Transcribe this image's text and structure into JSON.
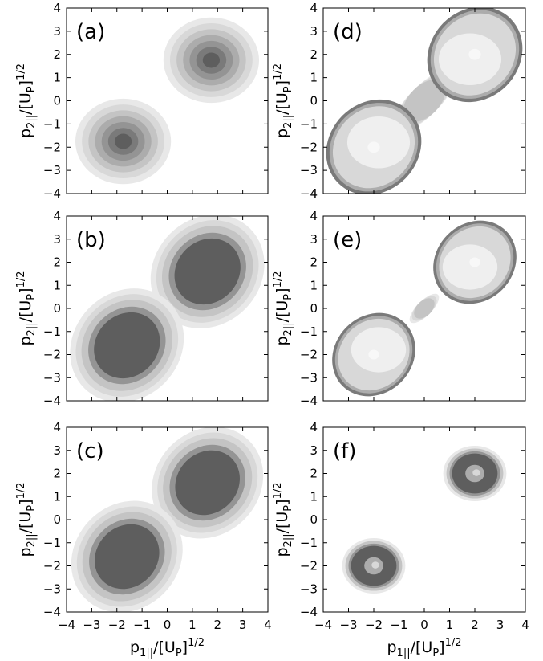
{
  "chart_data": [
    {
      "type": "heatmap",
      "panel_label": "(a)",
      "ylabel_main": "p",
      "ylabel_sub": "2||",
      "ylabel_tail": "/[U",
      "ylabel_tail_sub": "P",
      "ylabel_end": "]",
      "ylabel_sup": "1/2",
      "xlim": [
        -4,
        4
      ],
      "ylim": [
        -4,
        4
      ],
      "x_ticks": [
        "-4",
        "-3",
        "-2",
        "-1",
        "0",
        "1",
        "2",
        "3",
        "4"
      ],
      "y_ticks": [
        "4",
        "3",
        "2",
        "1",
        "0",
        "-1",
        "-2",
        "-3",
        "-4"
      ],
      "style": "peak",
      "lobes": [
        {
          "cx": 1.75,
          "cy": 1.75,
          "radius": 1.9
        },
        {
          "cx": -1.75,
          "cy": -1.75,
          "radius": 1.9
        }
      ],
      "bridge": 0
    },
    {
      "type": "heatmap",
      "panel_label": "(b)",
      "ylabel_main": "p",
      "ylabel_sub": "2||",
      "ylabel_tail": "/[U",
      "ylabel_tail_sub": "P",
      "ylabel_end": "]",
      "ylabel_sup": "1/2",
      "xlim": [
        -4,
        4
      ],
      "ylim": [
        -4,
        4
      ],
      "x_ticks": [
        "-4",
        "-3",
        "-2",
        "-1",
        "0",
        "1",
        "2",
        "3",
        "4"
      ],
      "y_ticks": [
        "4",
        "3",
        "2",
        "1",
        "0",
        "-1",
        "-2",
        "-3",
        "-4"
      ],
      "style": "plateau",
      "lobes": [
        {
          "cx": 1.6,
          "cy": 1.6,
          "radius": 2.4
        },
        {
          "cx": -1.6,
          "cy": -1.6,
          "radius": 2.4
        }
      ],
      "bridge": 1
    },
    {
      "type": "heatmap",
      "panel_label": "(c)",
      "ylabel_main": "p",
      "ylabel_sub": "2||",
      "ylabel_tail": "/[U",
      "ylabel_tail_sub": "P",
      "ylabel_end": "]",
      "ylabel_sup": "1/2",
      "xlabel_main": "p",
      "xlabel_sub": "1||",
      "xlabel_tail": "/[U",
      "xlabel_tail_sub": "P",
      "xlabel_end": "]",
      "xlabel_sup": "1/2",
      "xlim": [
        -4,
        4
      ],
      "ylim": [
        -4,
        4
      ],
      "x_ticks": [
        "-4",
        "-3",
        "-2",
        "-1",
        "0",
        "1",
        "2",
        "3",
        "4"
      ],
      "y_ticks": [
        "4",
        "3",
        "2",
        "1",
        "0",
        "-1",
        "-2",
        "-3",
        "-4"
      ],
      "style": "plateau",
      "lobes": [
        {
          "cx": 1.6,
          "cy": 1.6,
          "radius": 2.35
        },
        {
          "cx": -1.6,
          "cy": -1.6,
          "radius": 2.35
        }
      ],
      "bridge": 1
    },
    {
      "type": "heatmap",
      "panel_label": "(d)",
      "ylabel_main": "p",
      "ylabel_sub": "2||",
      "ylabel_tail": "/[U",
      "ylabel_tail_sub": "P",
      "ylabel_end": "]",
      "ylabel_sup": "1/2",
      "xlim": [
        -4,
        4
      ],
      "ylim": [
        -4,
        4
      ],
      "x_ticks": [
        "-4",
        "-3",
        "-2",
        "-1",
        "0",
        "1",
        "2",
        "3",
        "4"
      ],
      "y_ticks": [
        "4",
        "3",
        "2",
        "1",
        "0",
        "-1",
        "-2",
        "-3",
        "-4"
      ],
      "style": "ring",
      "lobes": [
        {
          "cx": 2.0,
          "cy": 2.0,
          "radius": 2.0
        },
        {
          "cx": -2.0,
          "cy": -2.0,
          "radius": 2.0
        }
      ],
      "bridge": 1
    },
    {
      "type": "heatmap",
      "panel_label": "(e)",
      "ylabel_main": "p",
      "ylabel_sub": "2||",
      "ylabel_tail": "/[U",
      "ylabel_tail_sub": "P",
      "ylabel_end": "]",
      "ylabel_sup": "1/2",
      "xlim": [
        -4,
        4
      ],
      "ylim": [
        -4,
        4
      ],
      "x_ticks": [
        "-4",
        "-3",
        "-2",
        "-1",
        "0",
        "1",
        "2",
        "3",
        "4"
      ],
      "y_ticks": [
        "4",
        "3",
        "2",
        "1",
        "0",
        "-1",
        "-2",
        "-3",
        "-4"
      ],
      "style": "ring",
      "lobes": [
        {
          "cx": 2.0,
          "cy": 2.0,
          "radius": 1.75
        },
        {
          "cx": -2.0,
          "cy": -2.0,
          "radius": 1.75
        }
      ],
      "bridge": 0.4
    },
    {
      "type": "heatmap",
      "panel_label": "(f)",
      "ylabel_main": "p",
      "ylabel_sub": "2||",
      "ylabel_tail": "/[U",
      "ylabel_tail_sub": "P",
      "ylabel_end": "]",
      "ylabel_sup": "1/2",
      "xlabel_main": "p",
      "xlabel_sub": "1||",
      "xlabel_tail": "/[U",
      "xlabel_tail_sub": "P",
      "xlabel_end": "]",
      "xlabel_sup": "1/2",
      "xlim": [
        -4,
        4
      ],
      "ylim": [
        -4,
        4
      ],
      "x_ticks": [
        "-4",
        "-3",
        "-2",
        "-1",
        "0",
        "1",
        "2",
        "3",
        "4"
      ],
      "y_ticks": [
        "4",
        "3",
        "2",
        "1",
        "0",
        "-1",
        "-2",
        "-3",
        "-4"
      ],
      "style": "dot",
      "lobes": [
        {
          "cx": 2.0,
          "cy": 2.0,
          "radius": 1.25
        },
        {
          "cx": -2.0,
          "cy": -2.0,
          "radius": 1.25
        }
      ],
      "bridge": 0
    }
  ],
  "colors": {
    "levels": [
      "#e8e8e8",
      "#d8d8d8",
      "#c4c4c4",
      "#acacac",
      "#949494",
      "#7a7a7a",
      "#5e5e5e"
    ],
    "frame": "#000000"
  }
}
